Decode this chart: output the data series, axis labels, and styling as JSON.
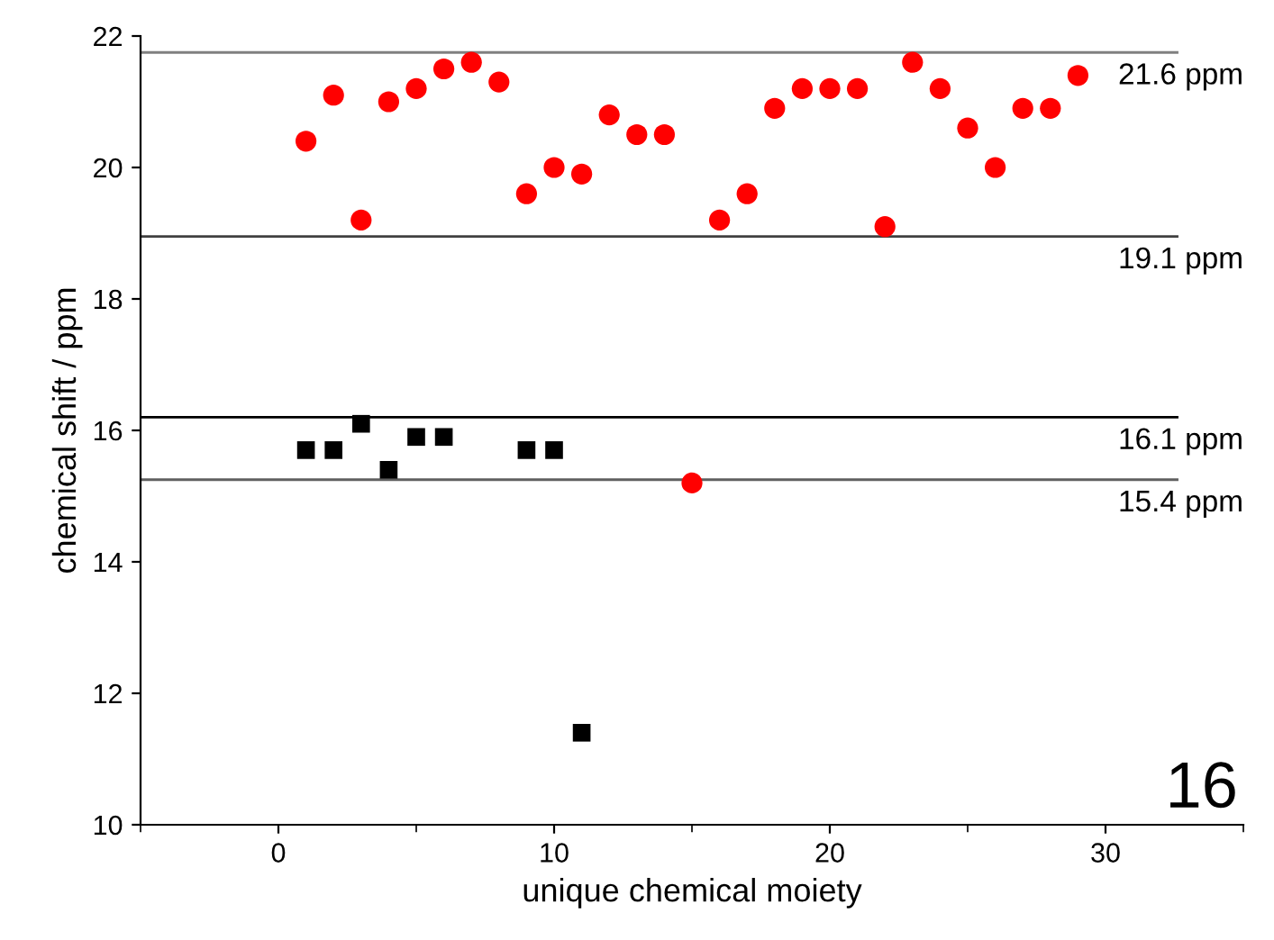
{
  "chart_data": {
    "type": "scatter",
    "xlabel": "unique chemical moiety",
    "ylabel": "chemical shift / ppm",
    "xlim": [
      -5,
      35
    ],
    "xticks": [
      0,
      10,
      20,
      30
    ],
    "ylim": [
      10,
      22
    ],
    "yticks": [
      10,
      12,
      14,
      16,
      18,
      20,
      22
    ],
    "grid": false,
    "legend": false,
    "series": [
      {
        "color": "#ff0000",
        "marker": "circle",
        "x": [
          1,
          2,
          3,
          4,
          5,
          6,
          7,
          8,
          9,
          10,
          11,
          12,
          13,
          14,
          15,
          16,
          17,
          18,
          19,
          20,
          21,
          22,
          23,
          24,
          25,
          26,
          27,
          28,
          29
        ],
        "values": [
          20.4,
          21.1,
          19.2,
          21.0,
          21.2,
          21.5,
          21.6,
          21.3,
          19.6,
          20.0,
          19.9,
          20.8,
          20.5,
          20.5,
          15.2,
          19.2,
          19.6,
          20.9,
          21.2,
          21.2,
          21.2,
          19.1,
          21.6,
          21.2,
          20.6,
          20.0,
          20.9,
          20.9,
          21.4
        ]
      },
      {
        "color": "#000000",
        "marker": "square",
        "x": [
          1,
          2,
          3,
          4,
          5,
          6,
          9,
          10,
          11
        ],
        "values": [
          15.7,
          15.7,
          16.1,
          15.4,
          15.9,
          15.9,
          15.7,
          15.7,
          11.4
        ]
      }
    ],
    "ref_lines": [
      {
        "axis": "y",
        "value": 21.75,
        "label": "21.6 ppm",
        "color": "#808080"
      },
      {
        "axis": "y",
        "value": 18.95,
        "label": "19.1 ppm",
        "color": "#404040"
      },
      {
        "axis": "y",
        "value": 16.2,
        "label": "16.1 ppm",
        "color": "#000000"
      },
      {
        "axis": "y",
        "value": 15.25,
        "label": "15.4 ppm",
        "color": "#606060"
      }
    ],
    "annotations": [
      "16"
    ]
  }
}
